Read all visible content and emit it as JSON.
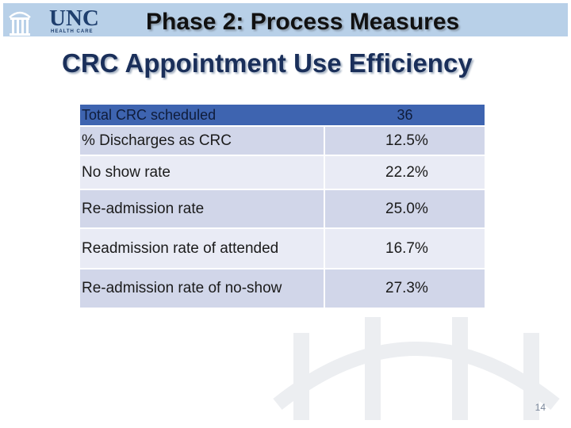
{
  "header": {
    "logo_text": "UNC",
    "logo_subtext": "HEALTH CARE",
    "title": "Phase 2: Process Measures"
  },
  "slide": {
    "title": "CRC Appointment Use Efficiency",
    "page_number": "14"
  },
  "table": {
    "header": {
      "label": "Total CRC scheduled",
      "value": "36"
    },
    "rows": [
      {
        "label": "% Discharges as CRC",
        "value": "12.5%"
      },
      {
        "label": "No show rate",
        "value": "22.2%"
      },
      {
        "label": "Re-admission rate",
        "value": "25.0%"
      },
      {
        "label": "Readmission rate of attended",
        "value": "16.7%"
      },
      {
        "label": "Re-admission rate of no-show",
        "value": "27.3%"
      }
    ]
  },
  "colors": {
    "header_bar": "#b8d0e8",
    "table_header": "#3e64b0",
    "row_dark": "#d1d6e9",
    "row_light": "#e9ebf5",
    "title_text": "#1a2f5a"
  }
}
